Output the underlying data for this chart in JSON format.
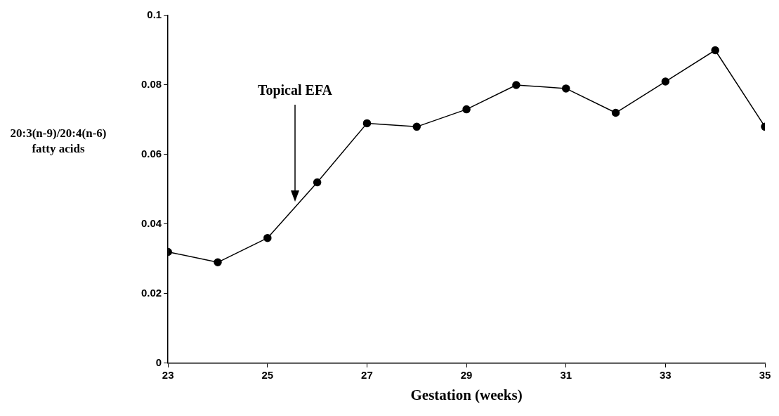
{
  "chart_data": {
    "type": "line",
    "xlabel": "Gestation (weeks)",
    "ylabel": "20:3(n-9)/20:4(n-6) fatty acids",
    "x": [
      23,
      24,
      25,
      26,
      27,
      28,
      29,
      30,
      31,
      32,
      33,
      34,
      35
    ],
    "series": [
      {
        "color": "#000000",
        "values": [
          0.032,
          0.029,
          0.036,
          0.052,
          0.069,
          0.068,
          0.073,
          0.08,
          0.079,
          0.072,
          0.081,
          0.09,
          0.068
        ]
      }
    ],
    "xlim": [
      23,
      35
    ],
    "xticks": [
      23,
      25,
      27,
      29,
      31,
      33,
      35
    ],
    "ylim": [
      0,
      0.1
    ],
    "yticks": [
      0,
      0.02,
      0.04,
      0.06,
      0.08,
      0.1
    ],
    "annotations": [
      "Topical EFA"
    ],
    "grid": false,
    "legend": false,
    "marker": "circle",
    "line_style": "solid"
  }
}
